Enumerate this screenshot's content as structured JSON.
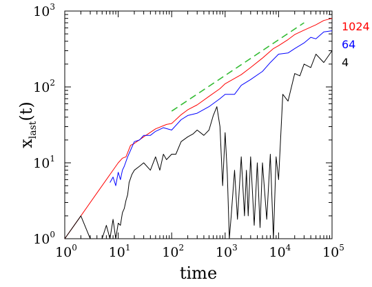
{
  "chart_data": {
    "type": "line",
    "xscale": "log",
    "yscale": "log",
    "xlim": [
      1,
      100000
    ],
    "ylim": [
      1,
      1000
    ],
    "x_ticks": [
      {
        "base": "10",
        "exp": "0",
        "value": 1
      },
      {
        "base": "10",
        "exp": "1",
        "value": 10
      },
      {
        "base": "10",
        "exp": "2",
        "value": 100
      },
      {
        "base": "10",
        "exp": "3",
        "value": 1000
      },
      {
        "base": "10",
        "exp": "4",
        "value": 10000
      },
      {
        "base": "10",
        "exp": "5",
        "value": 100000
      }
    ],
    "y_ticks": [
      {
        "base": "10",
        "exp": "0",
        "value": 1
      },
      {
        "base": "10",
        "exp": "1",
        "value": 10
      },
      {
        "base": "10",
        "exp": "2",
        "value": 100
      },
      {
        "base": "10",
        "exp": "3",
        "value": 1000
      }
    ],
    "xlabel": "time",
    "ylabel": {
      "main": "x",
      "sub": "last",
      "suffix": "(t)"
    },
    "grid": false,
    "legend_placement": "right",
    "series": [
      {
        "name": "1024",
        "color": "#ff0000",
        "x": [
          1,
          2,
          4,
          7,
          10,
          12,
          14,
          17,
          20,
          30,
          50,
          80,
          100,
          150,
          200,
          300,
          500,
          800,
          1000,
          2000,
          3000,
          5000,
          8000,
          10000,
          15000,
          20000,
          30000,
          50000,
          70000,
          100000
        ],
        "y": [
          1,
          2,
          4,
          7,
          10,
          11.5,
          12,
          17,
          18,
          22,
          28,
          32,
          33,
          43,
          50,
          58,
          75,
          95,
          110,
          145,
          180,
          240,
          320,
          350,
          420,
          490,
          560,
          660,
          750,
          800
        ]
      },
      {
        "name": "64",
        "color": "#0000ff",
        "x": [
          7,
          8,
          9,
          10,
          11,
          12,
          13,
          15,
          18,
          20,
          25,
          30,
          40,
          50,
          70,
          100,
          150,
          200,
          300,
          500,
          800,
          1000,
          1500,
          2000,
          3000,
          5000,
          7000,
          10000,
          15000,
          20000,
          30000,
          40000,
          50000,
          70000,
          100000
        ],
        "y": [
          5.5,
          6.5,
          5,
          7.5,
          6,
          8,
          9,
          12,
          16,
          19,
          20,
          23,
          23,
          26,
          29,
          27,
          37,
          42,
          45,
          55,
          70,
          80,
          80,
          105,
          125,
          160,
          210,
          270,
          280,
          320,
          380,
          450,
          430,
          530,
          550
        ]
      },
      {
        "name": "4",
        "color": "#000000",
        "x": [
          1,
          2,
          3,
          5,
          6,
          7,
          8,
          9,
          10,
          11,
          12,
          13,
          14,
          15,
          16,
          18,
          20,
          25,
          30,
          40,
          50,
          60,
          70,
          80,
          100,
          120,
          150,
          200,
          250,
          300,
          400,
          500,
          600,
          700,
          800,
          900,
          1000,
          1100,
          1200,
          1300,
          1500,
          1700,
          2000,
          2300,
          2500,
          2700,
          3000,
          3500,
          4000,
          4500,
          5000,
          6000,
          7000,
          8000,
          9000,
          10000,
          12000,
          15000,
          20000,
          25000,
          30000,
          40000,
          50000,
          70000,
          100000
        ],
        "y": [
          1,
          2,
          1,
          1,
          1.5,
          1,
          1.8,
          1,
          1.6,
          1.5,
          2.2,
          2.5,
          3.2,
          3.8,
          5.5,
          7,
          8,
          9,
          10,
          8,
          12,
          8,
          13,
          11,
          13,
          13,
          19,
          22,
          24,
          27,
          23,
          27,
          42,
          55,
          30,
          5,
          25,
          7,
          1,
          2,
          8,
          1.8,
          12,
          2,
          8,
          2,
          12,
          1.5,
          10,
          1.4,
          10,
          1.8,
          13,
          1,
          12,
          6,
          80,
          65,
          150,
          140,
          200,
          180,
          270,
          210,
          300
        ]
      },
      {
        "name": "",
        "color": "#33bb33",
        "dashed": true,
        "x": [
          100,
          30000
        ],
        "y": [
          48,
          700
        ]
      }
    ]
  }
}
